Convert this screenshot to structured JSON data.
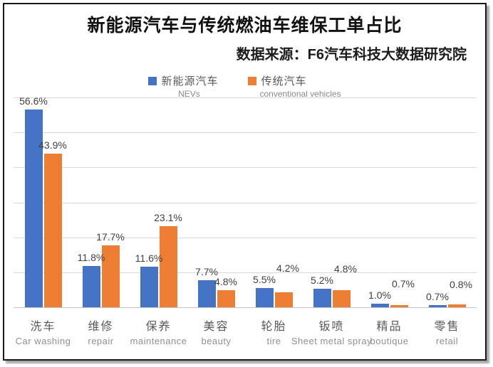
{
  "header": {
    "title": "新能源汽车与传统燃油车维保工单占比",
    "source_note": "数据来源：F6汽车科技大数据研究院"
  },
  "legend": [
    {
      "label": "新能源汽车",
      "sublabel": "NEVs",
      "color": "#4472C4"
    },
    {
      "label": "传统汽车",
      "sublabel": "conventional vehicles",
      "color": "#ED7D31"
    }
  ],
  "chart_data": {
    "type": "bar",
    "title": "新能源汽车与传统燃油车维保工单占比",
    "categories": [
      {
        "zh": "洗车",
        "en": "Car washing"
      },
      {
        "zh": "维修",
        "en": "repair"
      },
      {
        "zh": "保养",
        "en": "maintenance"
      },
      {
        "zh": "美容",
        "en": "beauty"
      },
      {
        "zh": "轮胎",
        "en": "tire"
      },
      {
        "zh": "钣喷",
        "en": "Sheet metal spray"
      },
      {
        "zh": "精品",
        "en": "boutique"
      },
      {
        "zh": "零售",
        "en": "retail"
      }
    ],
    "series": [
      {
        "name": "新能源汽车",
        "name_en": "NEVs",
        "color": "#4472C4",
        "values": [
          56.6,
          11.8,
          11.6,
          7.7,
          5.5,
          5.2,
          1.0,
          0.7
        ]
      },
      {
        "name": "传统汽车",
        "name_en": "conventional vehicles",
        "color": "#ED7D31",
        "values": [
          43.9,
          17.7,
          23.1,
          4.8,
          4.2,
          4.8,
          0.7,
          0.8
        ]
      }
    ],
    "unit": "%",
    "xlabel": "",
    "ylabel": "",
    "ylim": [
      0,
      60
    ],
    "gridline_step": 10,
    "grid": true,
    "legend_position": "top",
    "data_labels": true,
    "colors": {
      "grid": "#d9d9d9",
      "axis": "#c3c3c3",
      "label_text": "#3f3f3f"
    }
  }
}
